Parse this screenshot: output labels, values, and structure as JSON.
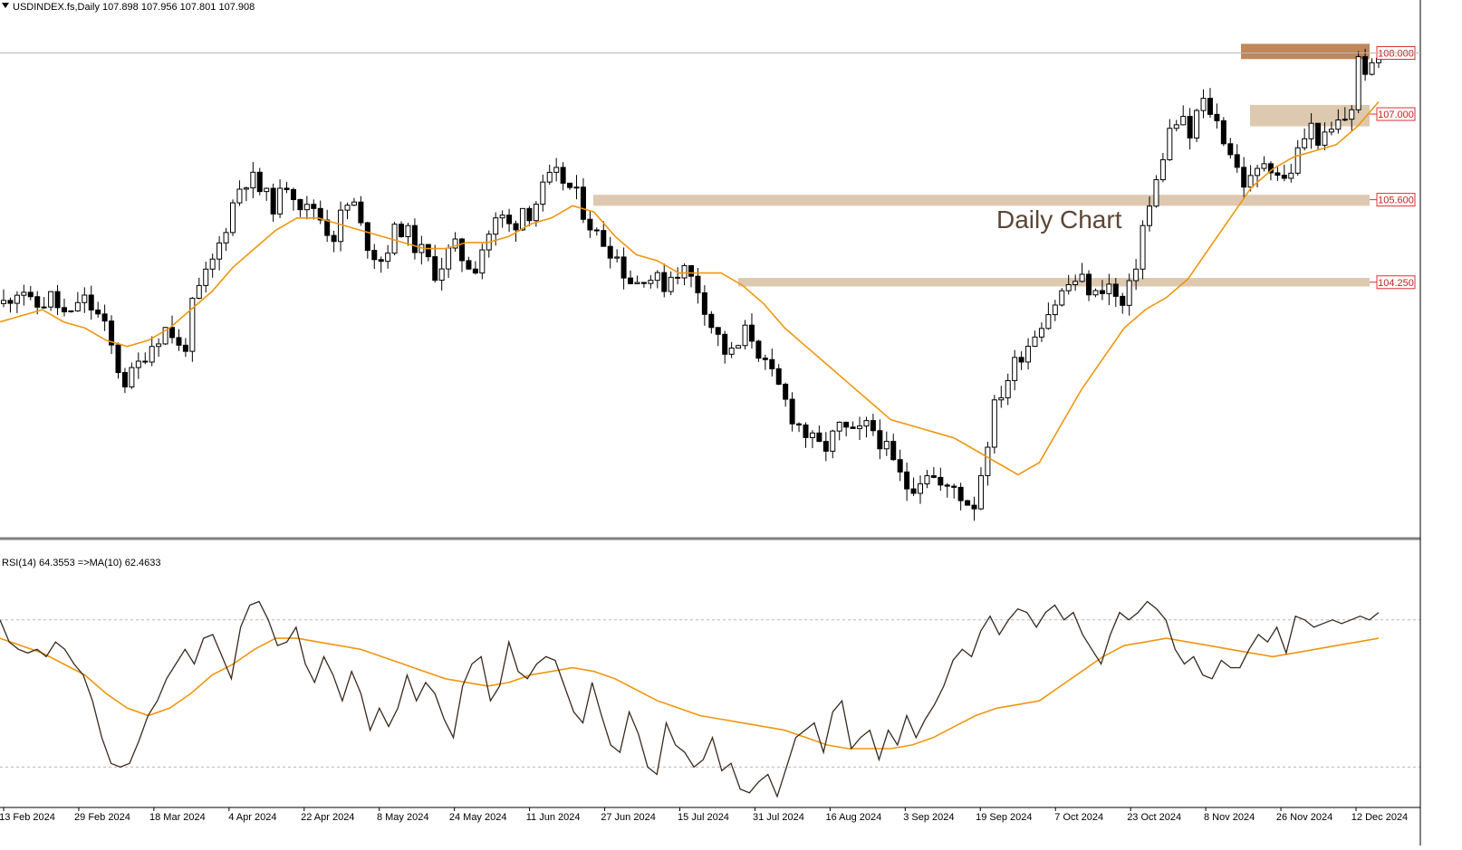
{
  "header": {
    "symbol_line": "USDINDEX.fs,Daily  107.898 107.956 107.801 107.908",
    "rsi_line": "RSI(14) 64.3553  =>MA(10) 62.4633"
  },
  "annotation": {
    "text": "Daily Chart"
  },
  "colors": {
    "candle": "#000000",
    "ma": "#f0960f",
    "zone_light": "#d9c3a6",
    "zone_dark": "#b87a4a",
    "price_label_border": "#e33030",
    "price_label_text": "#c41e1e",
    "rsi_line": "#3a2a1e",
    "rsi_ma": "#f0960f",
    "level_line": "#b8b8b8"
  },
  "chart_data": [
    {
      "type": "candlestick",
      "symbol": "USDINDEX.fs",
      "timeframe": "Daily",
      "last_ohlc": {
        "open": 107.898,
        "high": 107.956,
        "low": 107.801,
        "close": 107.908
      },
      "ylim": [
        100.1,
        108.6
      ],
      "x_tick_labels": [
        "13 Feb 2024",
        "29 Feb 2024",
        "18 Mar 2024",
        "4 Apr 2024",
        "22 Apr 2024",
        "8 May 2024",
        "24 May 2024",
        "11 Jun 2024",
        "27 Jun 2024",
        "15 Jul 2024",
        "31 Jul 2024",
        "16 Aug 2024",
        "3 Sep 2024",
        "19 Sep 2024",
        "7 Oct 2024",
        "23 Oct 2024",
        "8 Nov 2024",
        "26 Nov 2024",
        "12 Dec 2024"
      ],
      "close_path": [
        103.9,
        104.1,
        104.2,
        103.8,
        103.9,
        104.0,
        103.8,
        103.6,
        104.0,
        103.9,
        103.7,
        103.4,
        102.9,
        102.6,
        102.8,
        103.1,
        103.3,
        103.5,
        103.4,
        103.0,
        103.8,
        104.2,
        104.5,
        104.9,
        105.4,
        105.8,
        106.0,
        105.8,
        105.6,
        105.5,
        105.9,
        105.7,
        105.4,
        105.5,
        105.2,
        105.0,
        105.4,
        105.6,
        105.1,
        104.8,
        104.6,
        104.9,
        105.2,
        105.0,
        104.8,
        104.6,
        104.4,
        104.7,
        104.8,
        104.6,
        104.5,
        104.9,
        105.2,
        105.3,
        105.1,
        105.5,
        105.4,
        105.7,
        105.9,
        106.0,
        105.8,
        105.6,
        105.3,
        105.0,
        104.9,
        104.7,
        104.4,
        104.2,
        104.4,
        104.3,
        104.2,
        104.4,
        104.5,
        104.3,
        104.1,
        103.6,
        103.3,
        103.0,
        103.2,
        103.5,
        103.2,
        102.8,
        102.6,
        102.3,
        102.0,
        101.8,
        101.6,
        101.5,
        101.7,
        101.9,
        101.7,
        101.8,
        101.9,
        101.7,
        101.4,
        101.1,
        100.9,
        101.0,
        101.2,
        101.0,
        100.8,
        100.9,
        100.7,
        100.6,
        101.3,
        102.1,
        102.5,
        102.8,
        103.1,
        103.3,
        103.6,
        103.8,
        104.0,
        104.2,
        104.3,
        104.2,
        104.0,
        104.3,
        104.0,
        103.8,
        104.4,
        105.2,
        105.6,
        106.3,
        106.8,
        106.9,
        106.6,
        107.2,
        107.1,
        106.8,
        106.5,
        106.1,
        105.8,
        106.0,
        106.3,
        106.1,
        105.9,
        106.2,
        106.6,
        106.8,
        106.5,
        106.7,
        106.9,
        107.0,
        108.0,
        107.6,
        107.9
      ],
      "sma_path": [
        103.6,
        103.7,
        103.8,
        103.6,
        103.5,
        103.3,
        103.2,
        103.3,
        103.5,
        103.8,
        104.1,
        104.5,
        104.8,
        105.1,
        105.3,
        105.3,
        105.2,
        105.1,
        105.0,
        104.9,
        104.8,
        104.8,
        104.9,
        104.9,
        105.0,
        105.2,
        105.3,
        105.5,
        105.4,
        105.0,
        104.7,
        104.6,
        104.4,
        104.4,
        104.4,
        104.2,
        103.9,
        103.5,
        103.2,
        102.9,
        102.6,
        102.3,
        102.0,
        101.9,
        101.8,
        101.7,
        101.5,
        101.3,
        101.1,
        101.3,
        101.9,
        102.5,
        103.0,
        103.5,
        103.8,
        104.0,
        104.3,
        104.8,
        105.3,
        105.8,
        106.1,
        106.3,
        106.4,
        106.5,
        106.8,
        107.2
      ],
      "series": [
        {
          "name": "SMA",
          "line": "sma_path"
        }
      ],
      "zones": [
        {
          "from": 107.9,
          "to": 108.15,
          "tone": "dark"
        },
        {
          "from": 106.8,
          "to": 107.15,
          "tone": "light"
        },
        {
          "from": 105.5,
          "to": 105.68,
          "tone": "light"
        },
        {
          "from": 104.18,
          "to": 104.32,
          "tone": "light"
        }
      ],
      "price_labels": [
        "108.000",
        "107.000",
        "105.600",
        "104.250"
      ]
    },
    {
      "type": "line",
      "title": "RSI(14) 64.3553  =>MA(10) 62.4633",
      "ylim": [
        20,
        82
      ],
      "levels": [
        70,
        30
      ],
      "series": [
        {
          "name": "RSI(14)",
          "values": [
            70,
            64,
            62,
            61,
            62,
            60,
            64,
            62,
            58,
            55,
            48,
            38,
            31,
            30,
            31,
            37,
            44,
            48,
            54,
            58,
            62,
            58,
            65,
            66,
            60,
            54,
            68,
            74,
            75,
            70,
            63,
            64,
            68,
            58,
            53,
            60,
            55,
            48,
            56,
            50,
            40,
            46,
            41,
            46,
            55,
            48,
            53,
            50,
            43,
            38,
            52,
            58,
            60,
            48,
            52,
            64,
            56,
            54,
            58,
            60,
            59,
            52,
            45,
            42,
            53,
            44,
            36,
            34,
            45,
            39,
            30,
            28,
            42,
            36,
            34,
            30,
            32,
            38,
            29,
            31,
            24,
            23,
            26,
            28,
            22,
            30,
            38,
            40,
            42,
            34,
            45,
            48,
            35,
            38,
            40,
            32,
            40,
            36,
            44,
            38,
            43,
            47,
            52,
            59,
            62,
            60,
            67,
            71,
            66,
            70,
            73,
            72,
            68,
            72,
            74,
            70,
            72,
            66,
            62,
            58,
            66,
            72,
            70,
            72,
            75,
            73,
            70,
            62,
            58,
            60,
            55,
            54,
            59,
            57,
            57,
            62,
            66,
            64,
            68,
            61,
            71,
            70,
            68,
            69,
            70,
            69,
            70,
            71,
            70,
            72
          ]
        },
        {
          "name": "MA(10)",
          "values": [
            65,
            63,
            61,
            58,
            55,
            50,
            46,
            44,
            46,
            50,
            55,
            58,
            62,
            65,
            65,
            64,
            63,
            62,
            60,
            58,
            56,
            54,
            53,
            52,
            53,
            55,
            56,
            57,
            56,
            54,
            51,
            48,
            46,
            44,
            43,
            42,
            41,
            40,
            38,
            36,
            35,
            35,
            35,
            36,
            38,
            41,
            44,
            46,
            47,
            48,
            52,
            56,
            60,
            63,
            64,
            65,
            64,
            63,
            62,
            61,
            60,
            61,
            62,
            63,
            64,
            65
          ]
        }
      ]
    }
  ]
}
